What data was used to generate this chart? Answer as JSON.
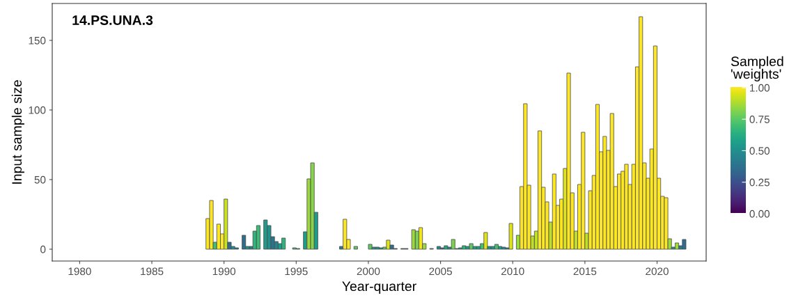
{
  "chart_data": {
    "type": "bar",
    "title": "14.PS.UNA.3",
    "xlabel": "Year-quarter",
    "ylabel": "Input sample size",
    "clabel": "Sampled\n'weights'",
    "x": [
      1988.875,
      1989.125,
      1989.375,
      1989.625,
      1989.875,
      1990.125,
      1990.375,
      1990.625,
      1990.875,
      1991.375,
      1991.625,
      1991.875,
      1992.125,
      1992.375,
      1992.875,
      1993.125,
      1993.375,
      1993.625,
      1993.875,
      1994.125,
      1994.875,
      1995.125,
      1995.625,
      1995.875,
      1996.125,
      1996.375,
      1998.125,
      1998.375,
      1998.625,
      1999.125,
      2000.125,
      2000.375,
      2000.625,
      2000.875,
      2001.125,
      2001.375,
      2001.625,
      2001.875,
      2002.375,
      2002.625,
      2003.125,
      2003.375,
      2003.625,
      2003.875,
      2004.375,
      2004.875,
      2005.125,
      2005.375,
      2005.625,
      2005.875,
      2006.125,
      2006.375,
      2006.625,
      2006.875,
      2007.125,
      2007.375,
      2007.625,
      2007.875,
      2008.125,
      2008.375,
      2008.625,
      2008.875,
      2009.125,
      2009.375,
      2009.625,
      2009.875,
      2010.375,
      2010.625,
      2010.875,
      2011.125,
      2011.375,
      2011.625,
      2011.875,
      2012.125,
      2012.375,
      2012.625,
      2012.875,
      2013.125,
      2013.375,
      2013.625,
      2013.875,
      2014.125,
      2014.375,
      2014.625,
      2014.875,
      2015.125,
      2015.375,
      2015.625,
      2015.875,
      2016.125,
      2016.375,
      2016.625,
      2016.875,
      2017.125,
      2017.375,
      2017.625,
      2017.875,
      2018.125,
      2018.375,
      2018.625,
      2018.875,
      2019.125,
      2019.375,
      2019.625,
      2019.875,
      2020.125,
      2020.375,
      2020.625,
      2020.875,
      2021.125,
      2021.375,
      2021.625,
      2021.875
    ],
    "values": [
      22,
      35,
      5,
      18,
      11,
      36,
      5,
      2,
      1,
      10,
      2,
      2,
      13,
      17,
      21,
      17,
      9,
      5.5,
      4,
      8,
      1,
      0.5,
      12.5,
      50.5,
      62,
      26.5,
      2,
      21.5,
      7,
      2,
      3.5,
      1.5,
      1.5,
      1,
      1.5,
      6.5,
      3,
      0.5,
      0.5,
      0.5,
      14,
      13,
      15.5,
      4,
      0.5,
      2,
      1,
      2.5,
      1.5,
      7,
      0.5,
      1,
      2.5,
      2,
      4,
      2,
      2,
      4,
      12,
      2,
      2,
      3.5,
      2,
      1.5,
      1,
      18.5,
      10,
      45,
      104.5,
      46,
      9.5,
      13,
      85,
      44.5,
      34,
      19.5,
      54,
      31.5,
      36,
      58,
      126.5,
      40.5,
      13,
      46.5,
      84,
      11.5,
      42,
      53,
      104,
      70,
      81,
      71,
      97.5,
      45,
      54,
      56,
      61,
      46.5,
      61,
      131,
      167,
      62,
      51,
      72,
      146,
      51,
      38,
      37,
      7.5,
      1.5,
      4.5,
      2.5,
      7
    ],
    "cvalues": [
      1,
      1,
      0.7,
      1,
      1,
      0.92,
      0.35,
      0.5,
      0.4,
      0.35,
      0.5,
      0.4,
      0.65,
      0.68,
      0.55,
      0.5,
      0.38,
      0.45,
      0.55,
      0.65,
      0.7,
      0.6,
      0.55,
      0.85,
      0.82,
      0.55,
      0.4,
      1,
      1,
      0.75,
      0.75,
      0.5,
      0.5,
      0.5,
      0.75,
      0.95,
      0.35,
      0.35,
      0.4,
      0.4,
      0.85,
      0.8,
      0.98,
      0.85,
      0.45,
      0.45,
      0.35,
      0.6,
      0.45,
      0.8,
      0.4,
      0.5,
      0.65,
      0.55,
      0.75,
      0.55,
      0.55,
      0.7,
      0.95,
      0.5,
      0.5,
      0.7,
      0.55,
      0.5,
      0.4,
      0.95,
      0.85,
      1,
      1,
      1,
      0.9,
      0.9,
      1,
      1,
      1,
      0.9,
      1,
      1,
      1,
      0.95,
      1,
      1,
      0.9,
      1,
      1,
      0.9,
      1,
      1,
      1,
      1,
      1,
      1,
      1,
      1,
      1,
      1,
      1,
      1,
      1,
      1,
      1,
      1,
      1,
      1,
      1,
      1,
      1,
      1,
      0.85,
      0.5,
      0.85,
      0.4,
      0.35
    ],
    "xlim": [
      1978.1,
      2023.4
    ],
    "xticks": [
      1980,
      1985,
      1990,
      1995,
      2000,
      2005,
      2010,
      2015,
      2020
    ],
    "ylim": [
      -8.5,
      176.5
    ],
    "yticks": [
      0,
      50,
      100,
      150
    ],
    "clim": [
      0,
      1
    ],
    "cticks": [
      {
        "value": 0,
        "label": "0.00"
      },
      {
        "value": 0.25,
        "label": "0.25"
      },
      {
        "value": 0.5,
        "label": "0.50"
      },
      {
        "value": 0.75,
        "label": "0.75"
      },
      {
        "value": 1,
        "label": "1.00"
      }
    ],
    "grid": false
  }
}
